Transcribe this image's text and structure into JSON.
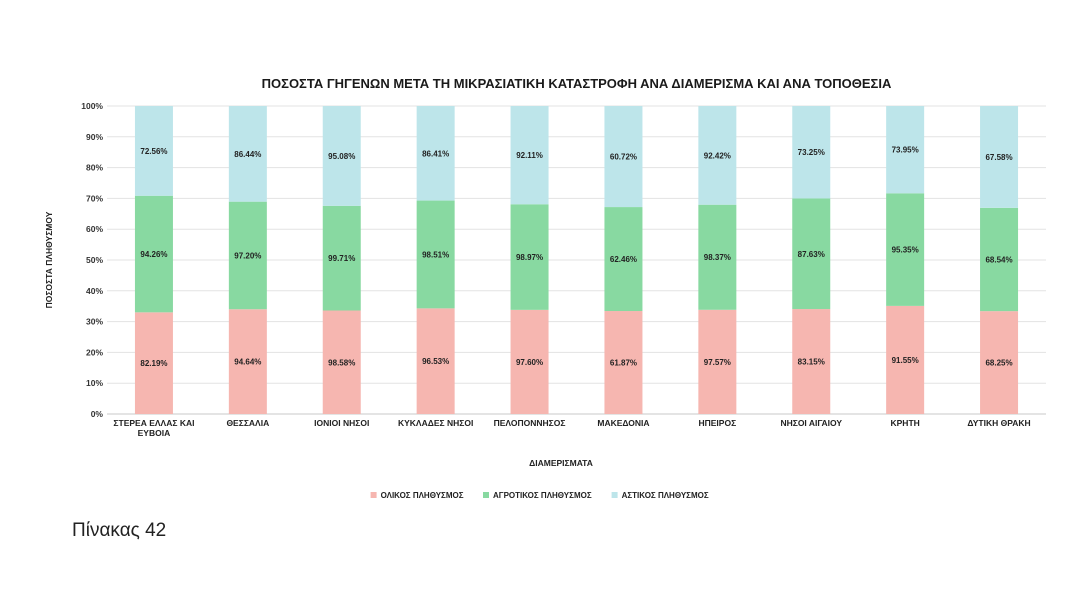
{
  "caption": "Πίνακας 42",
  "chart_data": {
    "type": "bar",
    "stacked": "percent",
    "title": "ΠΟΣΟΣΤΑ ΓΗΓΕΝΩΝ ΜΕΤΑ ΤΗ ΜΙΚΡΑΣΙΑΤΙΚΗ ΚΑΤΑΣΤΡΟΦΗ ΑΝΑ ΔΙΑΜΕΡΙΣΜΑ ΚΑΙ ΑΝΑ ΤΟΠΟΘΕΣΙΑ",
    "xlabel": "ΔΙΑΜΕΡΙΣΜΑΤΑ",
    "ylabel": "ΠΟΣΟΣΤΑ ΠΛΗΘΥΣΜΟΥ",
    "ylim": [
      0,
      100
    ],
    "yticks": [
      "0%",
      "10%",
      "20%",
      "30%",
      "40%",
      "50%",
      "60%",
      "70%",
      "80%",
      "90%",
      "100%"
    ],
    "grid": true,
    "legend_position": "bottom",
    "categories": [
      [
        "ΣΤΕΡΕΑ ΕΛΛΑΣ ΚΑΙ",
        "ΕΥΒΟΙΑ"
      ],
      [
        "ΘΕΣΣΑΛΙΑ"
      ],
      [
        "ΙΟΝΙΟΙ ΝΗΣΟΙ"
      ],
      [
        "ΚΥΚΛΑΔΕΣ ΝΗΣΟΙ"
      ],
      [
        "ΠΕΛΟΠΟΝΝΗΣΟΣ"
      ],
      [
        "ΜΑΚΕΔΟΝΙΑ"
      ],
      [
        "ΗΠΕΙΡΟΣ"
      ],
      [
        "ΝΗΣΟΙ ΑΙΓΑΙΟΥ"
      ],
      [
        "ΚΡΗΤΗ"
      ],
      [
        "ΔΥΤΙΚΗ ΘΡΑΚΗ"
      ]
    ],
    "series": [
      {
        "name": "ΟΛΙΚΟΣ ΠΛΗΘΥΣΜΟΣ",
        "color": "#f6b6b0",
        "values": [
          82.19,
          94.64,
          98.58,
          96.53,
          97.6,
          61.87,
          97.57,
          83.15,
          91.55,
          68.25
        ],
        "labels": [
          "82.19%",
          "94.64%",
          "98.58%",
          "96.53%",
          "97.60%",
          "61.87%",
          "97.57%",
          "83.15%",
          "91.55%",
          "68.25%"
        ]
      },
      {
        "name": "ΑΓΡΟΤΙΚΟΣ ΠΛΗΘΥΣΜΟΣ",
        "color": "#88d9a1",
        "values": [
          94.26,
          97.2,
          99.71,
          98.51,
          98.97,
          62.46,
          98.37,
          87.63,
          95.35,
          68.54
        ],
        "labels": [
          "94.26%",
          "97.20%",
          "99.71%",
          "98.51%",
          "98.97%",
          "62.46%",
          "98.37%",
          "87.63%",
          "95.35%",
          "68.54%"
        ]
      },
      {
        "name": "ΑΣΤΙΚΟΣ ΠΛΗΘΥΣΜΟΣ",
        "color": "#bde5ea",
        "values": [
          72.56,
          86.44,
          95.08,
          86.41,
          92.11,
          60.72,
          92.42,
          73.25,
          73.95,
          67.58
        ],
        "labels": [
          "72.56%",
          "86.44%",
          "95.08%",
          "86.41%",
          "92.11%",
          "60.72%",
          "92.42%",
          "73.25%",
          "73.95%",
          "67.58%"
        ]
      }
    ]
  }
}
